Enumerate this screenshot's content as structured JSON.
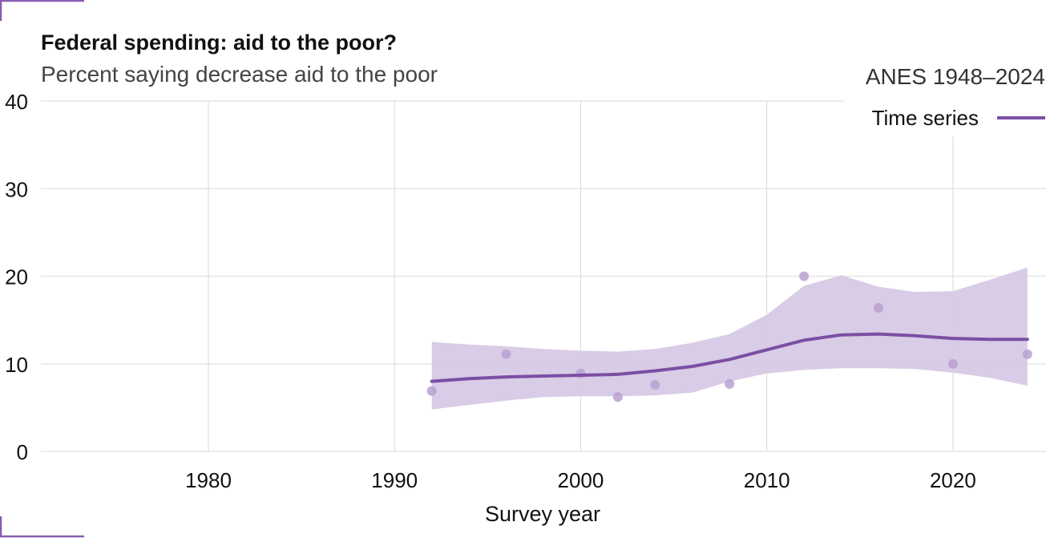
{
  "chart_data": {
    "type": "line",
    "title": "Federal spending: aid to the poor?",
    "subtitle": "Percent saying decrease aid to the poor",
    "source_label": "ANES 1948–2024",
    "legend": {
      "label": "Time series",
      "position": "top-right"
    },
    "xlabel": "Survey year",
    "ylabel": "",
    "xlim": [
      1971,
      2025
    ],
    "ylim": [
      0,
      40
    ],
    "x_ticks": [
      1980,
      1990,
      2000,
      2010,
      2020
    ],
    "y_ticks": [
      0,
      10,
      20,
      30,
      40
    ],
    "grid": true,
    "colors": {
      "series": "#7b4fa3",
      "band": "#d7c9e5",
      "points": "#b9a0d0",
      "grid": "#e0e0e0",
      "corner": "#8a5ab0"
    },
    "points": [
      {
        "x": 1992,
        "y": 6.9
      },
      {
        "x": 1996,
        "y": 11.1
      },
      {
        "x": 2000,
        "y": 8.9
      },
      {
        "x": 2002,
        "y": 6.2
      },
      {
        "x": 2004,
        "y": 7.6
      },
      {
        "x": 2008,
        "y": 7.7
      },
      {
        "x": 2012,
        "y": 20.0
      },
      {
        "x": 2016,
        "y": 16.4
      },
      {
        "x": 2020,
        "y": 10.0
      },
      {
        "x": 2024,
        "y": 11.1
      }
    ],
    "trend": {
      "x": [
        1992,
        1994,
        1996,
        1998,
        2000,
        2002,
        2004,
        2006,
        2008,
        2010,
        2012,
        2014,
        2016,
        2018,
        2020,
        2022,
        2024
      ],
      "y": [
        8.0,
        8.3,
        8.5,
        8.6,
        8.7,
        8.8,
        9.2,
        9.7,
        10.5,
        11.6,
        12.7,
        13.3,
        13.4,
        13.2,
        12.9,
        12.8,
        12.8
      ],
      "lower": [
        4.8,
        5.3,
        5.8,
        6.2,
        6.3,
        6.3,
        6.4,
        6.7,
        8.0,
        8.9,
        9.3,
        9.5,
        9.5,
        9.4,
        9.0,
        8.4,
        7.5
      ],
      "upper": [
        12.5,
        12.2,
        12.0,
        11.7,
        11.5,
        11.4,
        11.7,
        12.4,
        13.4,
        15.6,
        18.9,
        20.1,
        18.8,
        18.2,
        18.3,
        19.6,
        21.0
      ]
    }
  }
}
